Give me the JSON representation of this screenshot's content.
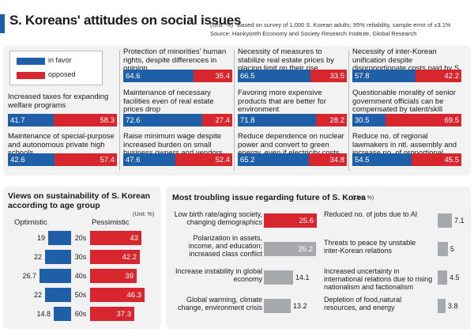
{
  "title": "S. Koreans' attitudes on social issues",
  "unit_note": "(Unit: %) *Based on survey of 1,000 S. Korean adults; 95% reliability, sample error of ±3.1%",
  "source_note": "Source: Hankyoreh Economy and Society Research Institute, Global Research",
  "colors": {
    "favor": "#1f5fa8",
    "opposed": "#d7262e",
    "optimistic": "#1f5fa8",
    "pessimistic": "#d7262e",
    "highlight": "#d7262e",
    "neutral": "#a7aaad"
  },
  "legend": {
    "favor": "in favor",
    "opposed": "opposed"
  },
  "chart_data": [
    {
      "type": "bar",
      "stacked": true,
      "series_names": [
        "in favor",
        "opposed"
      ],
      "items": [
        {
          "question": "Increased taxes for expanding welfare programs",
          "favor": "41.7",
          "opposed": "58.3"
        },
        {
          "question": "Maintenance of special-purpose and autonomous private high schools",
          "favor": "42.6",
          "opposed": "57.4"
        },
        {
          "question": "Protection of minorities' human rights, despite differences in opinion",
          "favor": "64.6",
          "opposed": "35.4"
        },
        {
          "question": "Maintenance of necessary facilities even of real estate prices drop",
          "favor": "72.6",
          "opposed": "27.4"
        },
        {
          "question": "Raise minimum wage despite increased burden on small business owners and vendors",
          "favor": "47.6",
          "opposed": "52.4"
        },
        {
          "question": "Necessity of measures to stabilize real estate prices by placing limit on their rise",
          "favor": "66.5",
          "opposed": "33.5"
        },
        {
          "question": "Favoring more expensive products that are better for environment",
          "favor": "71.8",
          "opposed": "28.2"
        },
        {
          "question": "Reduce dependence on nuclear power and convert to green energy, even if electricity costs rise",
          "favor": "65.2",
          "opposed": "34.8"
        },
        {
          "question": "Necessity of inter-Korean unification despite disproportionate costs paid by S. Korea",
          "favor": "57.8",
          "opposed": "42.2"
        },
        {
          "question": "Questionable morality of senior government officials can be compensated by talent/skill",
          "favor": "30.5",
          "opposed": "69.5"
        },
        {
          "question": "Reduce no. of regional lawmakers in ntl. assembly and increase no. of proportional representatives",
          "favor": "54.5",
          "opposed": "45.5"
        }
      ]
    },
    {
      "type": "bar",
      "title": "Views on sustainability of S. Korean according to age group",
      "unit": "(Unit: %)",
      "series_names": [
        "Optimistic",
        "Pessimistic"
      ],
      "categories": [
        "20s",
        "30s",
        "40s",
        "50s",
        "60s"
      ],
      "optimistic": [
        "19",
        "22",
        "26.7",
        "22",
        "14.8"
      ],
      "pessimistic": [
        "43",
        "42.2",
        "39",
        "46.3",
        "37.3"
      ]
    },
    {
      "type": "bar",
      "title": "Most troubling issue regarding future of S. Korea",
      "unit": "(Unit: %)",
      "items": [
        {
          "label": "Low birth rate/aging society, changing demographics",
          "value": "25.6",
          "highlight": true
        },
        {
          "label": "Polarization in assets, income, and education; increased class conflict",
          "value": "25.2",
          "highlight": false
        },
        {
          "label": "Increase instability in global economy",
          "value": "14.1",
          "highlight": false
        },
        {
          "label": "Global warming, climate change, environment crisis",
          "value": "13.2",
          "highlight": false
        },
        {
          "label": "Reduced no. of jobs due to AI",
          "value": "7.1",
          "highlight": false
        },
        {
          "label": "Threats to peace by unstable inter-Korean relations",
          "value": "5",
          "highlight": false
        },
        {
          "label": "Increased uncertainty in international relations due to rising nationalism and factionalism",
          "value": "4.5",
          "highlight": false
        },
        {
          "label": "Depletion of food,natural resources, and energy",
          "value": "3.8",
          "highlight": false
        }
      ]
    }
  ]
}
